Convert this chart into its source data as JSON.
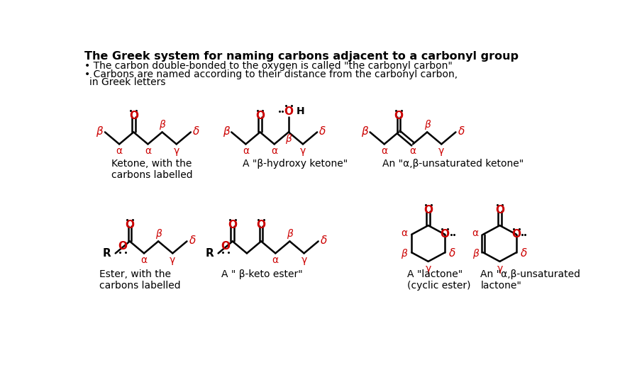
{
  "title": "The Greek system for naming carbons adjacent to a carbonyl group",
  "bullet1": "The carbon double-bonded to the oxygen is called \"the carbonyl carbon\"",
  "bullet2": "Carbons are named according to their distance from the carbonyl carbon,\n  in Greek letters",
  "bg_color": "#ffffff",
  "red": "#cc0000",
  "black": "#000000",
  "captions": [
    "Ketone, with the\ncarbons labelled",
    "A \"β-hydroxy ketone\"",
    "An \"α,β-unsaturated ketone\"",
    "Ester, with the\ncarbons labelled",
    "A \" β-keto ester\"",
    "A \"lactone\"\n(cyclic ester)",
    "An \"α,β-unsaturated\nlactone\""
  ]
}
